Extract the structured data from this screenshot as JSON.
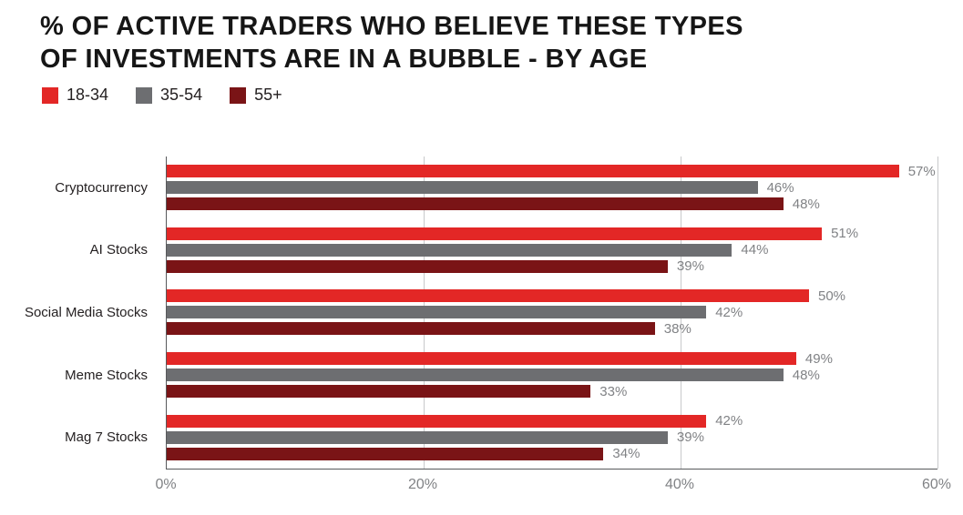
{
  "header": {
    "title": "% OF ACTIVE TRADERS WHO BELIEVE THESE TYPES\nOF INVESTMENTS ARE IN A BUBBLE - BY AGE"
  },
  "chart_data": {
    "type": "bar",
    "orientation": "horizontal",
    "title": "% OF ACTIVE TRADERS WHO BELIEVE THESE TYPES OF INVESTMENTS ARE IN A BUBBLE - BY AGE",
    "categories": [
      "Cryptocurrency",
      "AI Stocks",
      "Social Media Stocks",
      "Meme Stocks",
      "Mag 7 Stocks"
    ],
    "series": [
      {
        "name": "18-34",
        "color": "#e32726",
        "values": [
          57,
          51,
          50,
          49,
          42
        ]
      },
      {
        "name": "35-54",
        "color": "#6d6e71",
        "values": [
          46,
          44,
          42,
          48,
          39
        ]
      },
      {
        "name": "55+",
        "color": "#7a1416",
        "values": [
          48,
          39,
          38,
          33,
          34
        ]
      }
    ],
    "xlabel": "",
    "ylabel": "",
    "xlim": [
      0,
      60
    ],
    "x_ticks": [
      {
        "value": 0,
        "label": "0%"
      },
      {
        "value": 20,
        "label": "20%"
      },
      {
        "value": 40,
        "label": "40%"
      },
      {
        "value": 60,
        "label": "60%"
      }
    ],
    "grid": true,
    "legend_position": "top-left",
    "value_suffix": "%",
    "colors": {
      "axis": "#58595b",
      "gridline": "#c8c9cb",
      "data_label": "#808285",
      "tick_label": "#808285",
      "category_label": "#231f20"
    }
  }
}
